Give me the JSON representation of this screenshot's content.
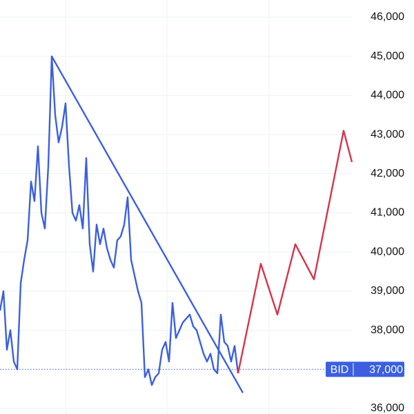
{
  "chart_data": {
    "type": "line",
    "xlim": [
      0,
      510
    ],
    "ylim": [
      36000,
      46000
    ],
    "yticks": [
      {
        "value": 36000,
        "label": "36,000"
      },
      {
        "value": 37000,
        "label": "37,000"
      },
      {
        "value": 38000,
        "label": "38,000"
      },
      {
        "value": 39000,
        "label": "39,000"
      },
      {
        "value": 40000,
        "label": "40,000"
      },
      {
        "value": 41000,
        "label": "41,000"
      },
      {
        "value": 42000,
        "label": "42,000"
      },
      {
        "value": 43000,
        "label": "43,000"
      },
      {
        "value": 44000,
        "label": "44,000"
      },
      {
        "value": 45000,
        "label": "45,000"
      },
      {
        "value": 46000,
        "label": "46,000"
      }
    ],
    "grid": true,
    "series": [
      {
        "color": "#3b5fe0",
        "x": [
          0,
          5,
          10,
          15,
          20,
          25,
          30,
          35,
          40,
          45,
          50,
          55,
          60,
          65,
          70,
          75,
          80,
          85,
          90,
          95,
          100,
          105,
          110,
          115,
          120,
          125,
          130,
          135,
          140,
          145,
          150,
          155,
          160,
          165,
          170,
          175,
          180,
          185,
          190,
          195,
          200,
          205,
          210,
          215,
          220,
          225,
          230,
          235,
          240,
          245,
          250,
          255,
          260,
          265,
          270,
          275,
          280,
          285,
          290,
          295,
          300,
          305,
          310,
          315,
          320,
          325,
          330,
          335,
          340,
          345
        ],
        "values": [
          38500,
          39000,
          37500,
          38000,
          37200,
          37000,
          39200,
          39800,
          40300,
          41800,
          41300,
          42700,
          41000,
          40600,
          42200,
          45000,
          43500,
          42800,
          43200,
          43800,
          42200,
          41000,
          40800,
          41200,
          40600,
          42400,
          40200,
          39500,
          40700,
          40200,
          40600,
          40100,
          39800,
          39600,
          40300,
          40400,
          40700,
          41400,
          39800,
          39400,
          39000,
          38700,
          36800,
          37000,
          36600,
          36800,
          36900,
          37500,
          37700,
          37200,
          38700,
          37800,
          38000,
          38200,
          38300,
          38400,
          38100,
          38000,
          37700,
          37400,
          37200,
          37400,
          37000,
          36900,
          38400,
          37700,
          37600,
          37200,
          37600,
          36900
        ]
      },
      {
        "color": "#3b5fe0",
        "x": [
          75,
          352
        ],
        "values": [
          45000,
          36400
        ]
      },
      {
        "color": "#d9324b",
        "x": [
          345,
          378,
          402,
          428,
          455,
          498,
          510
        ],
        "values": [
          36900,
          39700,
          38400,
          40200,
          39300,
          43100,
          42300
        ]
      }
    ],
    "bid": {
      "label": "BID",
      "value": 37000,
      "value_label": "37,000",
      "color": "#3b5fe0"
    }
  }
}
